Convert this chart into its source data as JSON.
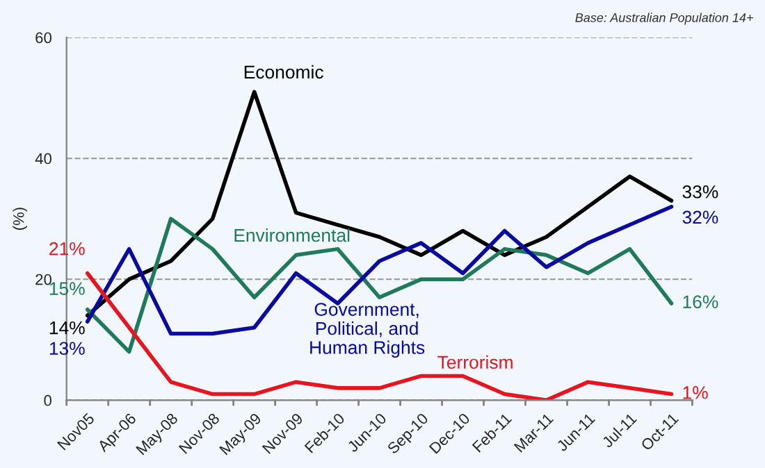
{
  "chart_data": {
    "type": "line",
    "ylabel": "(%)",
    "annotations": [
      "Base: Australian Population 14+"
    ],
    "categories": [
      "Nov05",
      "Apr-06",
      "May-08",
      "Nov-08",
      "May-09",
      "Nov-09",
      "Feb-10",
      "Jun-10",
      "Sep-10",
      "Dec-10",
      "Feb-11",
      "Mar-11",
      "Jun-11",
      "Jul-11",
      "Oct-11"
    ],
    "series": [
      {
        "name": "Economic",
        "color": "#000000",
        "values": [
          14,
          20,
          23,
          30,
          51,
          31,
          29,
          27,
          24,
          28,
          24,
          27,
          32,
          37,
          33
        ],
        "value_labels": [
          "14%",
          null,
          null,
          null,
          null,
          null,
          null,
          null,
          null,
          null,
          null,
          null,
          null,
          null,
          "33%"
        ]
      },
      {
        "name": "Environmental",
        "color": "#1e7a5a",
        "values": [
          15,
          8,
          30,
          25,
          17,
          24,
          25,
          17,
          20,
          20,
          25,
          24,
          21,
          25,
          16
        ],
        "value_labels": [
          "15%",
          null,
          null,
          null,
          null,
          null,
          null,
          null,
          null,
          null,
          null,
          null,
          null,
          null,
          "16%"
        ]
      },
      {
        "name": "Government,\nPolitical, and\nHuman Rights",
        "color": "#0a0aa0",
        "values": [
          13,
          25,
          11,
          11,
          12,
          21,
          16,
          23,
          26,
          21,
          28,
          22,
          26,
          29,
          32
        ],
        "value_labels": [
          "13%",
          null,
          null,
          null,
          null,
          null,
          null,
          null,
          null,
          null,
          null,
          null,
          null,
          null,
          "32%"
        ]
      },
      {
        "name": "Terrorism",
        "color": "#e8141e",
        "values": [
          21,
          12,
          3,
          1,
          1,
          3,
          2,
          2,
          4,
          4,
          1,
          0,
          3,
          2,
          1
        ],
        "value_labels": [
          "21%",
          null,
          null,
          null,
          null,
          null,
          null,
          null,
          null,
          null,
          null,
          null,
          null,
          null,
          "1%"
        ]
      }
    ],
    "ylim": [
      0,
      60
    ],
    "yticks": [
      0,
      20,
      40,
      60
    ],
    "grid": "y",
    "line_style": "solid",
    "marker": "none",
    "legend": false
  }
}
